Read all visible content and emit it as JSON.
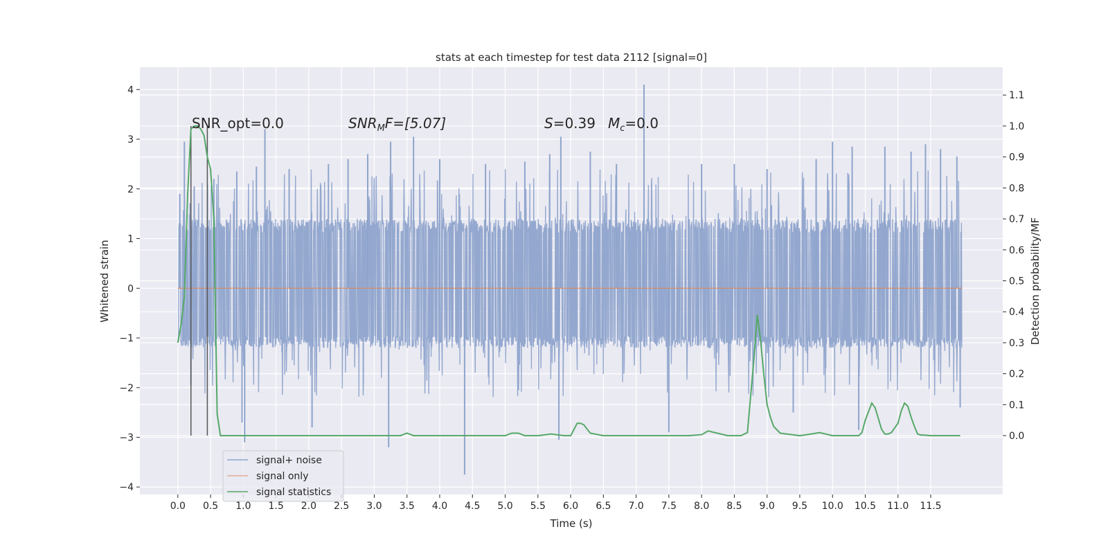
{
  "chart_data": {
    "type": "line",
    "title": "stats at each timestep for test data 2112 [signal=0]",
    "xlabel": "Time (s)",
    "ylabel_left": "Whitened strain",
    "ylabel_right": "Detection probability/MF",
    "xlim": [
      -0.58,
      12.6
    ],
    "ylim_left": [
      -4.15,
      4.45
    ],
    "ylim_right": [
      -0.19,
      1.19
    ],
    "x_ticks": [
      "0.0",
      "0.5",
      "1.0",
      "1.5",
      "2.0",
      "2.5",
      "3.0",
      "3.5",
      "4.0",
      "4.5",
      "5.0",
      "5.5",
      "6.0",
      "6.5",
      "7.0",
      "7.5",
      "8.0",
      "8.5",
      "9.0",
      "9.5",
      "10.0",
      "10.5",
      "11.0",
      "11.5"
    ],
    "y_ticks_left": [
      "−4",
      "−3",
      "−2",
      "−1",
      "0",
      "1",
      "2",
      "3",
      "4"
    ],
    "y_ticks_right": [
      "0.0",
      "0.1",
      "0.2",
      "0.3",
      "0.4",
      "0.5",
      "0.6",
      "0.7",
      "0.8",
      "0.9",
      "1.0",
      "1.1"
    ],
    "grid": true,
    "legend_location": "lower-left",
    "series": [
      {
        "name": "signal+ noise",
        "color": "#8fa4cc",
        "axis": "left",
        "note": "dense noise band, mostly within about -1.2 to 1.4 with spikes up to about 4.1 and down to about -3.8",
        "typical_low": -1.2,
        "typical_high": 1.4,
        "spikes": [
          {
            "x": 0.03,
            "y": 1.9
          },
          {
            "x": 0.1,
            "y": 2.95
          },
          {
            "x": 0.2,
            "y": -1.95
          },
          {
            "x": 0.25,
            "y": 2.05
          },
          {
            "x": 0.55,
            "y": 2.2
          },
          {
            "x": 0.9,
            "y": 2.35
          },
          {
            "x": 0.98,
            "y": -2.7
          },
          {
            "x": 1.02,
            "y": -3.1
          },
          {
            "x": 1.2,
            "y": 2.45
          },
          {
            "x": 1.33,
            "y": 3.2
          },
          {
            "x": 1.7,
            "y": 2.4
          },
          {
            "x": 2.05,
            "y": -2.8
          },
          {
            "x": 2.3,
            "y": 2.5
          },
          {
            "x": 2.6,
            "y": 2.6
          },
          {
            "x": 2.9,
            "y": 2.7
          },
          {
            "x": 3.25,
            "y": 2.95
          },
          {
            "x": 3.22,
            "y": -3.2
          },
          {
            "x": 3.6,
            "y": 3.05
          },
          {
            "x": 4.0,
            "y": 2.6
          },
          {
            "x": 4.38,
            "y": -3.75
          },
          {
            "x": 4.7,
            "y": 2.5
          },
          {
            "x": 5.3,
            "y": 2.55
          },
          {
            "x": 5.68,
            "y": 2.7
          },
          {
            "x": 5.85,
            "y": 3.05
          },
          {
            "x": 5.82,
            "y": -3.05
          },
          {
            "x": 6.3,
            "y": 2.75
          },
          {
            "x": 6.7,
            "y": 2.5
          },
          {
            "x": 7.12,
            "y": 4.1
          },
          {
            "x": 7.5,
            "y": -2.9
          },
          {
            "x": 8.0,
            "y": 2.5
          },
          {
            "x": 8.5,
            "y": 2.5
          },
          {
            "x": 9.0,
            "y": 2.4
          },
          {
            "x": 9.4,
            "y": -2.5
          },
          {
            "x": 9.75,
            "y": 2.6
          },
          {
            "x": 10.0,
            "y": 2.95
          },
          {
            "x": 10.3,
            "y": 2.85
          },
          {
            "x": 10.4,
            "y": -2.85
          },
          {
            "x": 10.8,
            "y": 2.85
          },
          {
            "x": 11.2,
            "y": 2.75
          },
          {
            "x": 11.42,
            "y": 2.9
          },
          {
            "x": 11.65,
            "y": 2.8
          },
          {
            "x": 11.9,
            "y": 2.65
          },
          {
            "x": 11.95,
            "y": -2.4
          }
        ]
      },
      {
        "name": "signal only",
        "color": "#dd8452",
        "axis": "left",
        "x": [
          0.0,
          11.98
        ],
        "y": [
          0.0,
          0.0
        ]
      },
      {
        "name": "signal statistics",
        "color": "#55a868",
        "axis": "right",
        "x": [
          0.0,
          0.05,
          0.1,
          0.15,
          0.2,
          0.25,
          0.3,
          0.35,
          0.4,
          0.45,
          0.5,
          0.55,
          0.6,
          0.65,
          0.7,
          1.0,
          2.0,
          3.0,
          3.4,
          3.5,
          3.6,
          4.0,
          5.0,
          5.1,
          5.2,
          5.3,
          5.5,
          5.7,
          5.9,
          6.0,
          6.05,
          6.1,
          6.15,
          6.2,
          6.3,
          6.5,
          7.0,
          7.5,
          7.8,
          8.0,
          8.1,
          8.2,
          8.4,
          8.6,
          8.7,
          8.8,
          8.85,
          8.9,
          8.95,
          9.0,
          9.05,
          9.1,
          9.2,
          9.5,
          9.7,
          9.8,
          10.0,
          10.3,
          10.4,
          10.45,
          10.5,
          10.6,
          10.65,
          10.7,
          10.75,
          10.8,
          10.85,
          10.9,
          11.0,
          11.05,
          11.1,
          11.15,
          11.2,
          11.25,
          11.3,
          11.35,
          11.4,
          11.5,
          11.7,
          11.95
        ],
        "y": [
          0.3,
          0.36,
          0.45,
          0.78,
          0.99,
          1.0,
          1.0,
          0.99,
          0.97,
          0.9,
          0.86,
          0.7,
          0.07,
          0.0,
          0.0,
          0.0,
          0.0,
          0.0,
          0.0,
          0.008,
          0.0,
          0.0,
          0.0,
          0.008,
          0.008,
          0.0,
          0.0,
          0.005,
          0.0,
          0.0,
          0.02,
          0.04,
          0.04,
          0.035,
          0.008,
          0.0,
          0.0,
          0.0,
          0.0,
          0.003,
          0.015,
          0.01,
          0.0,
          0.0,
          0.01,
          0.25,
          0.39,
          0.31,
          0.2,
          0.1,
          0.06,
          0.03,
          0.008,
          0.0,
          0.006,
          0.01,
          0.0,
          0.0,
          0.0,
          0.01,
          0.05,
          0.105,
          0.09,
          0.055,
          0.02,
          0.005,
          0.005,
          0.01,
          0.04,
          0.08,
          0.105,
          0.095,
          0.06,
          0.03,
          0.005,
          0.002,
          0.002,
          0.0,
          0.0,
          0.0
        ]
      }
    ],
    "vertical_markers": {
      "color": "#555555",
      "x": [
        0.2,
        0.45
      ],
      "y_range": [
        0.0,
        1.0
      ],
      "axis": "right"
    },
    "annotations": {
      "snr_opt": "SNR_opt=0.0",
      "snr_mf_base": "SNR",
      "snr_mf_sub": "M",
      "snr_mf_rest": "F=[5.07]",
      "s_sym": "S",
      "s_val": "=0.39",
      "mc_base": "M",
      "mc_sub": "c",
      "mc_val": "=0.0"
    }
  },
  "legend": {
    "items": [
      {
        "label": "signal+ noise",
        "color": "#8fa4cc"
      },
      {
        "label": "signal only",
        "color": "#dd8452"
      },
      {
        "label": "signal statistics",
        "color": "#55a868"
      }
    ]
  }
}
